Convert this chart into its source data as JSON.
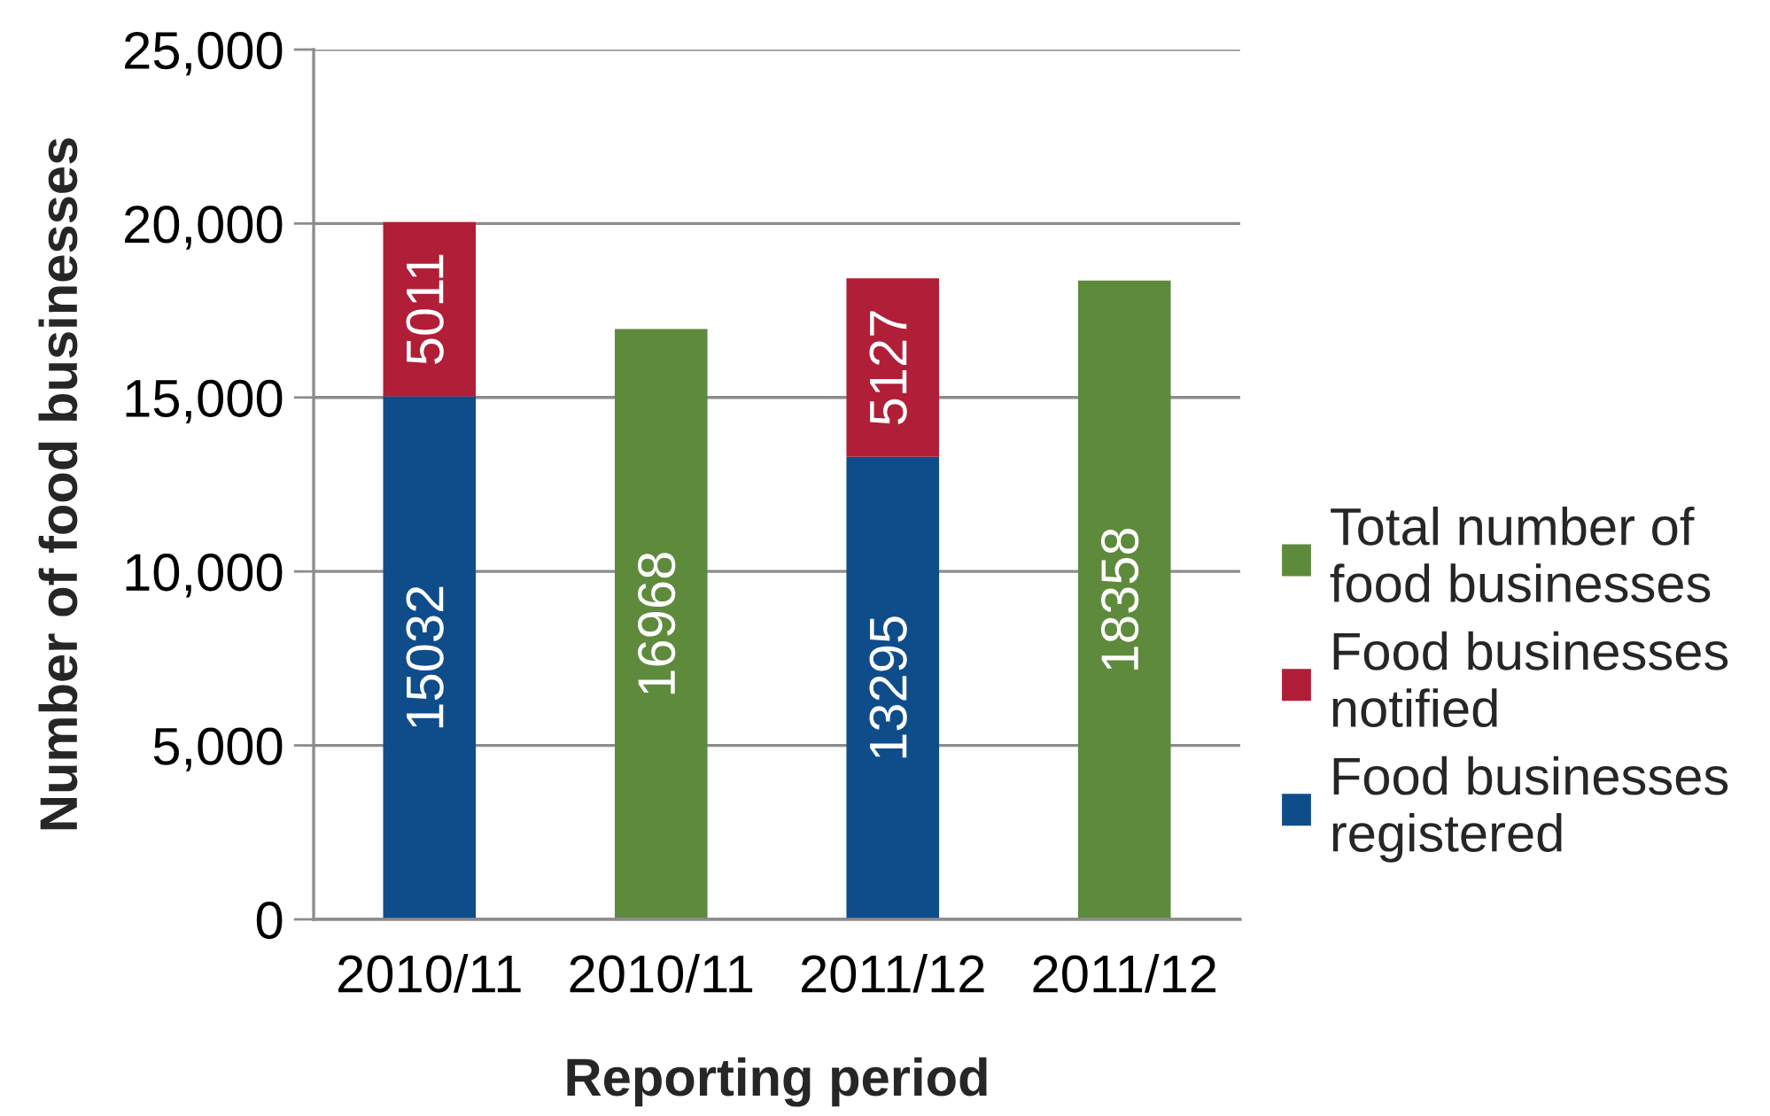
{
  "chart_data": {
    "type": "bar",
    "stacked": true,
    "xlabel": "Reporting period",
    "ylabel": "Number of food businesses",
    "categories": [
      "2010/11",
      "2010/11",
      "2011/12",
      "2011/12"
    ],
    "series": [
      {
        "name": "Food businesses\nregistered",
        "color": "#0f4d8a",
        "values": [
          15032,
          null,
          13295,
          null
        ]
      },
      {
        "name": "Food businesses\nnotified",
        "color": "#b01f37",
        "values": [
          5011,
          null,
          5127,
          null
        ]
      },
      {
        "name": "Total number of\nfood businesses",
        "color": "#5e8a3c",
        "values": [
          null,
          16968,
          null,
          18358
        ]
      }
    ],
    "ylim": [
      0,
      25000
    ],
    "yticks": [
      0,
      {
        "value": 5000,
        "label": "5,000"
      },
      {
        "value": 10000,
        "label": "10,000"
      },
      {
        "value": 15000,
        "label": "15,000"
      },
      {
        "value": 20000,
        "label": "20,000"
      },
      {
        "value": 25000,
        "label": "25,000"
      }
    ],
    "grid": "y",
    "legend": "right",
    "data_labels": true
  }
}
